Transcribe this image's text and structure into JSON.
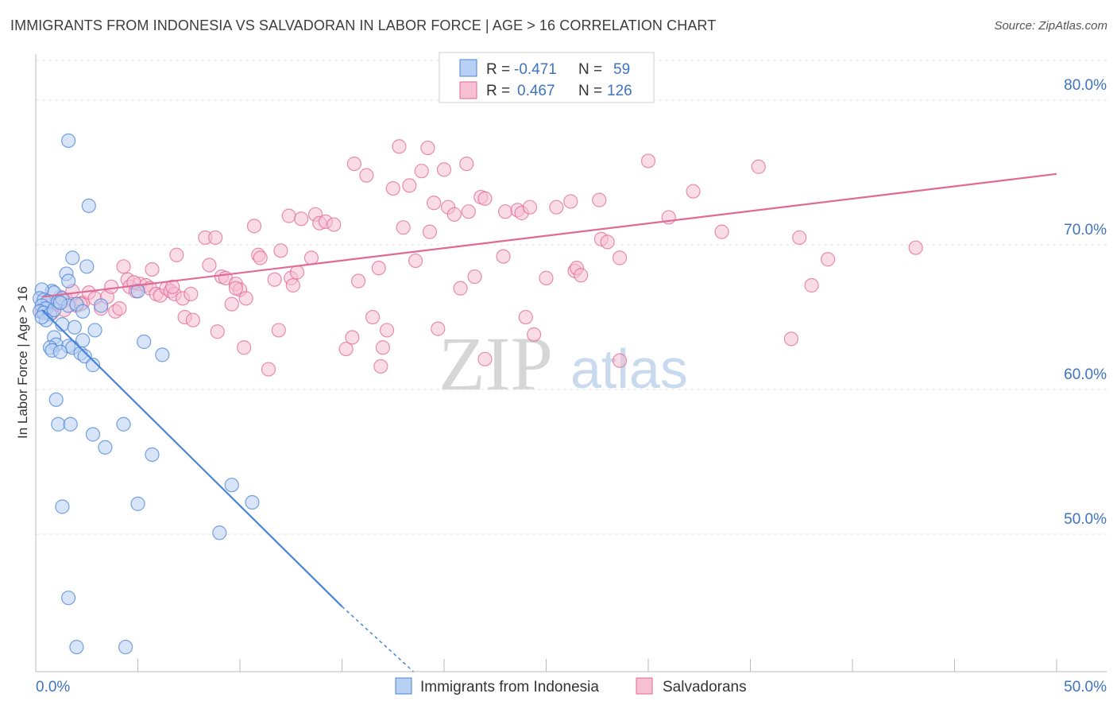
{
  "title": "IMMIGRANTS FROM INDONESIA VS SALVADORAN IN LABOR FORCE | AGE > 16 CORRELATION CHART",
  "source": "Source: ZipAtlas.com",
  "watermark": {
    "zip": "ZIP",
    "atlas": "atlas"
  },
  "colors": {
    "blue": "#4a84d6",
    "blue_fill": "#b8d0f3",
    "pink": "#e06a95",
    "pink_fill": "#f6bfd2",
    "tick": "#3e74c0"
  },
  "legend_box": {
    "rows": [
      {
        "r_label": "R =",
        "r_value": "-0.471",
        "n_label": "N =",
        "n_value": "59"
      },
      {
        "r_label": "R =",
        "r_value": "0.467",
        "n_label": "N =",
        "n_value": "126"
      }
    ]
  },
  "bottom_legend": [
    "Immigrants from Indonesia",
    "Salvadorans"
  ],
  "chart_data": {
    "type": "scatter",
    "title": "IMMIGRANTS FROM INDONESIA VS SALVADORAN IN LABOR FORCE | AGE > 16 CORRELATION CHART",
    "xlabel": "",
    "ylabel": "In Labor Force | Age > 16",
    "xlim": [
      0,
      50
    ],
    "ylim": [
      40.5,
      82.5
    ],
    "x_tick_labels": [
      "0.0%",
      "50.0%"
    ],
    "y_ticks": [
      50,
      60,
      70,
      80
    ],
    "y_tick_labels": [
      "50.0%",
      "60.0%",
      "70.0%",
      "80.0%"
    ],
    "grid": true,
    "legend_placement": "bottom",
    "series": [
      {
        "name": "Immigrants from Indonesia",
        "R": -0.471,
        "N": 59,
        "trend": {
          "x0": 0.3,
          "y0": 65.5,
          "x1": 15,
          "y1": 45.0,
          "dashed_to_x": 18.5,
          "dashed_to_y": 40.5
        },
        "points": [
          [
            1.6,
            77.2
          ],
          [
            2.6,
            72.7
          ],
          [
            1.8,
            69.1
          ],
          [
            2.5,
            68.5
          ],
          [
            1.5,
            68.0
          ],
          [
            1.6,
            67.5
          ],
          [
            0.8,
            66.8
          ],
          [
            0.9,
            66.7
          ],
          [
            0.3,
            66.9
          ],
          [
            0.2,
            66.3
          ],
          [
            0.4,
            66.2
          ],
          [
            0.6,
            66.1
          ],
          [
            0.3,
            65.8
          ],
          [
            0.5,
            65.6
          ],
          [
            0.2,
            65.4
          ],
          [
            0.4,
            65.3
          ],
          [
            0.7,
            65.2
          ],
          [
            0.9,
            65.5
          ],
          [
            1.1,
            66.1
          ],
          [
            1.3,
            66.3
          ],
          [
            1.6,
            65.8
          ],
          [
            2.0,
            65.9
          ],
          [
            3.2,
            65.8
          ],
          [
            2.3,
            65.4
          ],
          [
            0.5,
            64.8
          ],
          [
            1.3,
            64.5
          ],
          [
            1.9,
            64.3
          ],
          [
            2.9,
            64.1
          ],
          [
            0.9,
            63.6
          ],
          [
            2.3,
            63.4
          ],
          [
            1.0,
            63.1
          ],
          [
            0.7,
            62.9
          ],
          [
            0.8,
            62.7
          ],
          [
            1.6,
            63.0
          ],
          [
            1.8,
            62.9
          ],
          [
            1.2,
            62.6
          ],
          [
            2.2,
            62.5
          ],
          [
            2.4,
            62.3
          ],
          [
            2.8,
            61.7
          ],
          [
            5.3,
            63.3
          ],
          [
            6.2,
            62.4
          ],
          [
            5.0,
            66.8
          ],
          [
            1.0,
            59.3
          ],
          [
            1.1,
            57.6
          ],
          [
            1.7,
            57.6
          ],
          [
            2.8,
            56.9
          ],
          [
            3.4,
            56.0
          ],
          [
            4.3,
            57.6
          ],
          [
            5.7,
            55.5
          ],
          [
            1.3,
            51.9
          ],
          [
            5.0,
            52.1
          ],
          [
            9.6,
            53.4
          ],
          [
            10.6,
            52.2
          ],
          [
            9.0,
            50.1
          ],
          [
            1.6,
            45.6
          ],
          [
            2.0,
            42.2
          ],
          [
            4.4,
            42.2
          ],
          [
            0.3,
            65.0
          ],
          [
            1.2,
            66.0
          ]
        ]
      },
      {
        "name": "Salvadorans",
        "R": 0.467,
        "N": 126,
        "trend": {
          "x0": 0.3,
          "y0": 66.4,
          "x1": 50,
          "y1": 74.9
        },
        "points": [
          [
            0.3,
            65.4
          ],
          [
            0.5,
            65.8
          ],
          [
            0.8,
            65.3
          ],
          [
            1.0,
            65.9
          ],
          [
            1.2,
            66.4
          ],
          [
            1.5,
            66.2
          ],
          [
            1.8,
            66.8
          ],
          [
            2.0,
            65.8
          ],
          [
            2.3,
            66.0
          ],
          [
            2.6,
            66.7
          ],
          [
            2.9,
            66.3
          ],
          [
            3.2,
            65.6
          ],
          [
            3.5,
            66.4
          ],
          [
            3.9,
            65.4
          ],
          [
            4.1,
            65.6
          ],
          [
            4.3,
            68.5
          ],
          [
            4.5,
            67.6
          ],
          [
            4.6,
            67.1
          ],
          [
            4.9,
            66.8
          ],
          [
            5.1,
            67.3
          ],
          [
            5.4,
            67.2
          ],
          [
            5.6,
            67.0
          ],
          [
            5.7,
            68.3
          ],
          [
            5.9,
            66.6
          ],
          [
            6.1,
            66.5
          ],
          [
            6.4,
            67.0
          ],
          [
            6.6,
            66.8
          ],
          [
            6.8,
            66.6
          ],
          [
            6.9,
            69.3
          ],
          [
            7.2,
            66.3
          ],
          [
            7.3,
            65.0
          ],
          [
            7.6,
            66.6
          ],
          [
            7.7,
            64.8
          ],
          [
            8.3,
            70.5
          ],
          [
            8.5,
            68.6
          ],
          [
            8.8,
            70.5
          ],
          [
            8.9,
            64.0
          ],
          [
            9.1,
            67.8
          ],
          [
            9.3,
            67.7
          ],
          [
            9.6,
            65.9
          ],
          [
            9.8,
            67.3
          ],
          [
            10.0,
            66.9
          ],
          [
            10.2,
            62.9
          ],
          [
            10.3,
            66.3
          ],
          [
            10.7,
            71.3
          ],
          [
            10.9,
            69.3
          ],
          [
            11.0,
            69.1
          ],
          [
            11.4,
            61.4
          ],
          [
            11.7,
            67.6
          ],
          [
            11.9,
            64.1
          ],
          [
            12.0,
            69.6
          ],
          [
            12.5,
            67.7
          ],
          [
            12.6,
            67.2
          ],
          [
            12.8,
            68.1
          ],
          [
            12.4,
            72.0
          ],
          [
            13.0,
            71.8
          ],
          [
            13.5,
            69.1
          ],
          [
            13.7,
            72.1
          ],
          [
            13.9,
            71.5
          ],
          [
            14.2,
            71.6
          ],
          [
            14.6,
            71.4
          ],
          [
            15.2,
            62.8
          ],
          [
            15.5,
            63.6
          ],
          [
            15.6,
            75.6
          ],
          [
            15.8,
            67.5
          ],
          [
            16.2,
            74.8
          ],
          [
            16.5,
            65.0
          ],
          [
            16.8,
            68.4
          ],
          [
            16.9,
            61.6
          ],
          [
            17.0,
            62.9
          ],
          [
            17.2,
            64.1
          ],
          [
            17.5,
            73.9
          ],
          [
            17.8,
            76.8
          ],
          [
            18.0,
            71.2
          ],
          [
            18.3,
            74.1
          ],
          [
            18.6,
            68.9
          ],
          [
            18.9,
            75.1
          ],
          [
            19.2,
            76.7
          ],
          [
            19.3,
            70.9
          ],
          [
            19.5,
            72.9
          ],
          [
            19.7,
            64.2
          ],
          [
            20.0,
            75.2
          ],
          [
            20.2,
            72.6
          ],
          [
            20.5,
            72.1
          ],
          [
            20.8,
            67.0
          ],
          [
            21.1,
            75.6
          ],
          [
            21.2,
            72.3
          ],
          [
            21.5,
            67.8
          ],
          [
            21.8,
            73.3
          ],
          [
            22.0,
            73.2
          ],
          [
            22.0,
            62.1
          ],
          [
            22.9,
            69.2
          ],
          [
            23.0,
            72.3
          ],
          [
            23.6,
            72.4
          ],
          [
            23.8,
            72.2
          ],
          [
            24.0,
            65.0
          ],
          [
            24.2,
            72.6
          ],
          [
            24.4,
            63.8
          ],
          [
            25.0,
            67.7
          ],
          [
            25.5,
            72.6
          ],
          [
            26.2,
            73.0
          ],
          [
            26.4,
            68.2
          ],
          [
            26.5,
            68.4
          ],
          [
            26.7,
            67.9
          ],
          [
            27.6,
            73.1
          ],
          [
            27.7,
            70.4
          ],
          [
            28.0,
            70.2
          ],
          [
            28.6,
            69.1
          ],
          [
            30.0,
            75.8
          ],
          [
            31.0,
            71.9
          ],
          [
            32.2,
            73.7
          ],
          [
            33.6,
            70.9
          ],
          [
            35.4,
            75.4
          ],
          [
            37.0,
            63.5
          ],
          [
            37.4,
            70.5
          ],
          [
            38.0,
            67.2
          ],
          [
            38.8,
            69.0
          ],
          [
            43.1,
            69.8
          ],
          [
            28.6,
            62.0
          ],
          [
            9.8,
            67.0
          ],
          [
            3.7,
            67.1
          ],
          [
            6.7,
            67.1
          ],
          [
            0.9,
            66.0
          ],
          [
            1.4,
            65.5
          ],
          [
            2.2,
            65.9
          ],
          [
            4.8,
            67.4
          ]
        ]
      }
    ]
  }
}
